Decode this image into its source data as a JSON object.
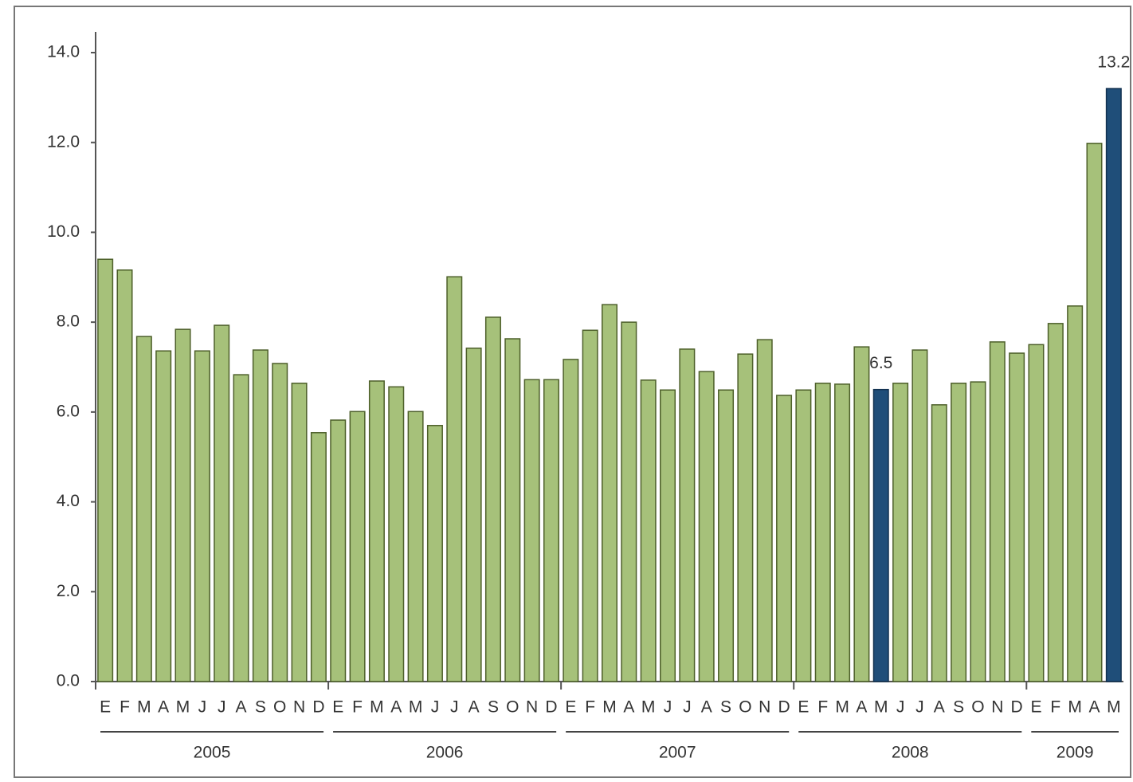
{
  "chart_data": {
    "type": "bar",
    "categories": [
      "E",
      "F",
      "M",
      "A",
      "M",
      "J",
      "J",
      "A",
      "S",
      "O",
      "N",
      "D",
      "E",
      "F",
      "M",
      "A",
      "M",
      "J",
      "J",
      "A",
      "S",
      "O",
      "N",
      "D",
      "E",
      "F",
      "M",
      "A",
      "M",
      "J",
      "J",
      "A",
      "S",
      "O",
      "N",
      "D",
      "E",
      "F",
      "M",
      "A",
      "M",
      "J",
      "J",
      "A",
      "S",
      "O",
      "N",
      "D",
      "E",
      "F",
      "M",
      "A",
      "M"
    ],
    "groups": [
      {
        "name": "2005",
        "size": 12
      },
      {
        "name": "2006",
        "size": 12
      },
      {
        "name": "2007",
        "size": 12
      },
      {
        "name": "2008",
        "size": 12
      },
      {
        "name": "2009",
        "size": 5
      }
    ],
    "values": [
      9.4,
      9.16,
      7.68,
      7.36,
      7.84,
      7.36,
      7.93,
      6.83,
      7.38,
      7.08,
      6.64,
      5.54,
      5.82,
      6.01,
      6.69,
      6.56,
      6.01,
      5.7,
      9.01,
      7.42,
      8.11,
      7.63,
      6.72,
      6.72,
      7.17,
      7.82,
      8.39,
      8.0,
      6.71,
      6.49,
      7.4,
      6.9,
      6.49,
      7.29,
      7.61,
      6.37,
      6.49,
      6.64,
      6.62,
      7.45,
      6.5,
      6.64,
      7.38,
      6.16,
      6.64,
      6.67,
      7.56,
      7.31,
      7.5,
      7.97,
      8.36,
      11.98,
      13.2
    ],
    "value_labels": [
      null,
      null,
      null,
      null,
      null,
      null,
      null,
      null,
      null,
      null,
      null,
      null,
      null,
      null,
      null,
      null,
      null,
      null,
      null,
      null,
      null,
      null,
      null,
      null,
      null,
      null,
      null,
      null,
      null,
      null,
      null,
      null,
      null,
      null,
      null,
      null,
      null,
      null,
      null,
      null,
      "6.5",
      null,
      null,
      null,
      null,
      null,
      null,
      null,
      null,
      null,
      null,
      null,
      "13.2"
    ],
    "colors": [
      "#a6c17a",
      "#a6c17a",
      "#a6c17a",
      "#a6c17a",
      "#a6c17a",
      "#a6c17a",
      "#a6c17a",
      "#a6c17a",
      "#a6c17a",
      "#a6c17a",
      "#a6c17a",
      "#a6c17a",
      "#a6c17a",
      "#a6c17a",
      "#a6c17a",
      "#a6c17a",
      "#a6c17a",
      "#a6c17a",
      "#a6c17a",
      "#a6c17a",
      "#a6c17a",
      "#a6c17a",
      "#a6c17a",
      "#a6c17a",
      "#a6c17a",
      "#a6c17a",
      "#a6c17a",
      "#a6c17a",
      "#a6c17a",
      "#a6c17a",
      "#a6c17a",
      "#a6c17a",
      "#a6c17a",
      "#a6c17a",
      "#a6c17a",
      "#a6c17a",
      "#a6c17a",
      "#a6c17a",
      "#a6c17a",
      "#a6c17a",
      "#1f4e79",
      "#a6c17a",
      "#a6c17a",
      "#a6c17a",
      "#a6c17a",
      "#a6c17a",
      "#a6c17a",
      "#a6c17a",
      "#a6c17a",
      "#a6c17a",
      "#a6c17a",
      "#a6c17a",
      "#1f4e79"
    ],
    "ylim": [
      0,
      14
    ],
    "yticks": [
      {
        "value": 0,
        "label": "0.0"
      },
      {
        "value": 2,
        "label": "2.0"
      },
      {
        "value": 4,
        "label": "4.0"
      },
      {
        "value": 6,
        "label": "6.0"
      },
      {
        "value": 8,
        "label": "8.0"
      },
      {
        "value": 10,
        "label": "10.0"
      },
      {
        "value": 12,
        "label": "12.0"
      },
      {
        "value": 14,
        "label": "14.0"
      }
    ],
    "grid": false
  }
}
